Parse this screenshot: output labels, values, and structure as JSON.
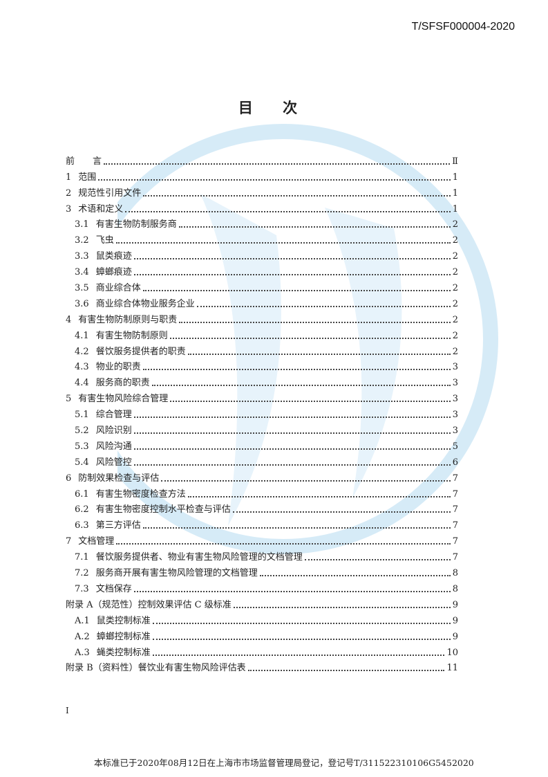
{
  "header": {
    "doc_number": "T/SFSF000004-2020"
  },
  "title": "目  次",
  "watermark": {
    "color": "#d6ebf7"
  },
  "toc": [
    {
      "num": "",
      "label": "前　　言",
      "page": "Ⅱ",
      "level": 1
    },
    {
      "num": "1",
      "label": "范围",
      "page": "1",
      "level": 1
    },
    {
      "num": "2",
      "label": "规范性引用文件",
      "page": "1",
      "level": 1
    },
    {
      "num": "3",
      "label": "术语和定义",
      "page": "1",
      "level": 1
    },
    {
      "num": "3.1",
      "label": "有害生物防制服务商",
      "page": "2",
      "level": 2
    },
    {
      "num": "3.2",
      "label": "飞虫",
      "page": "2",
      "level": 2
    },
    {
      "num": "3.3",
      "label": "鼠类痕迹",
      "page": "2",
      "level": 2
    },
    {
      "num": "3.4",
      "label": "蟑螂痕迹",
      "page": "2",
      "level": 2
    },
    {
      "num": "3.5",
      "label": "商业综合体",
      "page": "2",
      "level": 2
    },
    {
      "num": "3.6",
      "label": "商业综合体物业服务企业",
      "page": "2",
      "level": 2
    },
    {
      "num": "4",
      "label": "有害生物防制原则与职责",
      "page": "2",
      "level": 1
    },
    {
      "num": "4.1",
      "label": "有害生物防制原则",
      "page": "2",
      "level": 2
    },
    {
      "num": "4.2",
      "label": "餐饮服务提供者的职责",
      "page": "2",
      "level": 2
    },
    {
      "num": "4.3",
      "label": "物业的职责",
      "page": "3",
      "level": 2
    },
    {
      "num": "4.4",
      "label": "服务商的职责",
      "page": "3",
      "level": 2
    },
    {
      "num": "5",
      "label": "有害生物风险综合管理",
      "page": "3",
      "level": 1
    },
    {
      "num": "5.1",
      "label": "综合管理",
      "page": "3",
      "level": 2
    },
    {
      "num": "5.2",
      "label": "风险识别",
      "page": "3",
      "level": 2
    },
    {
      "num": "5.3",
      "label": "风险沟通",
      "page": "5",
      "level": 2
    },
    {
      "num": "5.4",
      "label": "风险管控",
      "page": "6",
      "level": 2
    },
    {
      "num": "6",
      "label": "防制效果检查与评估",
      "page": "7",
      "level": 1
    },
    {
      "num": "6.1",
      "label": "有害生物密度检查方法",
      "page": "7",
      "level": 2
    },
    {
      "num": "6.2",
      "label": "有害生物密度控制水平检查与评估",
      "page": "7",
      "level": 2
    },
    {
      "num": "6.3",
      "label": "第三方评估",
      "page": "7",
      "level": 2
    },
    {
      "num": "7",
      "label": "文档管理",
      "page": "7",
      "level": 1
    },
    {
      "num": "7.1",
      "label": "餐饮服务提供者、物业有害生物风险管理的文档管理",
      "page": "7",
      "level": 2
    },
    {
      "num": "7.2",
      "label": "服务商开展有害生物风险管理的文档管理",
      "page": "8",
      "level": 2
    },
    {
      "num": "7.3",
      "label": "文档保存",
      "page": "8",
      "level": 2
    },
    {
      "num": "",
      "label": "附录 A（规范性）控制效果评估 C 级标准",
      "page": "9",
      "level": 1
    },
    {
      "num": "A.1",
      "label": "鼠类控制标准",
      "page": "9",
      "level": 2
    },
    {
      "num": "A.2",
      "label": "蟑螂控制标准",
      "page": "9",
      "level": 2
    },
    {
      "num": "A.3",
      "label": "蝇类控制标准",
      "page": "10",
      "level": 2
    },
    {
      "num": "",
      "label": "附录 B（资料性）餐饮业有害生物风险评估表",
      "page": "11",
      "level": 1
    }
  ],
  "page_number": "I",
  "footer": "本标准已于2020年08月12日在上海市市场监督管理局登记，登记号T/31152231010​6G5452020"
}
